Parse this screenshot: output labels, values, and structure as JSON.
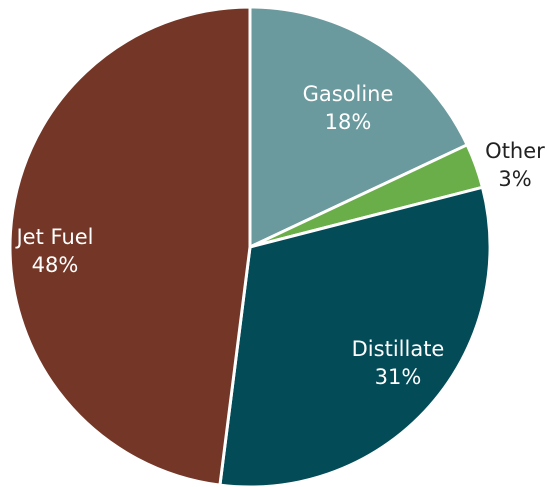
{
  "chart_data": {
    "type": "pie",
    "categories": [
      "Gasoline",
      "Other",
      "Distillate",
      "Jet Fuel"
    ],
    "values": [
      18,
      3,
      31,
      48
    ],
    "value_labels": [
      "18%",
      "3%",
      "31%",
      "48%"
    ],
    "colors": [
      "#6a9a9d",
      "#6aae4a",
      "#034b57",
      "#743626"
    ]
  }
}
